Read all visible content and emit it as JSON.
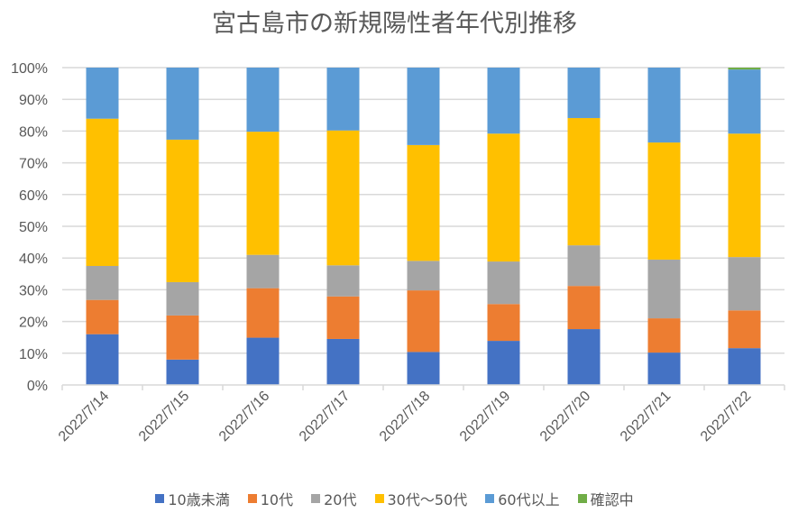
{
  "chart_data": {
    "type": "bar",
    "stacked": "percent",
    "title": "宮古島市の新規陽性者年代別推移",
    "xlabel": "",
    "ylabel": "",
    "ylim": [
      0,
      100
    ],
    "yticks": [
      "0%",
      "10%",
      "20%",
      "30%",
      "40%",
      "50%",
      "60%",
      "70%",
      "80%",
      "90%",
      "100%"
    ],
    "grid": true,
    "legend_position": "bottom",
    "categories": [
      "2022/7/14",
      "2022/7/15",
      "2022/7/16",
      "2022/7/17",
      "2022/7/18",
      "2022/7/19",
      "2022/7/20",
      "2022/7/21",
      "2022/7/22"
    ],
    "series": [
      {
        "name": "10歳未満",
        "color": "#4472C4",
        "values": [
          16.0,
          8.0,
          14.9,
          14.5,
          10.4,
          13.9,
          17.6,
          10.2,
          11.6
        ]
      },
      {
        "name": "10代",
        "color": "#ED7D31",
        "values": [
          10.8,
          13.9,
          15.6,
          13.4,
          19.4,
          11.6,
          13.6,
          10.8,
          11.9
        ]
      },
      {
        "name": "20代",
        "color": "#A5A5A5",
        "values": [
          10.7,
          10.5,
          10.5,
          9.8,
          9.3,
          13.4,
          12.8,
          18.5,
          16.8
        ]
      },
      {
        "name": "30代～50代",
        "color": "#FFC000",
        "values": [
          46.4,
          44.9,
          38.8,
          42.5,
          36.5,
          40.3,
          40.1,
          36.9,
          38.9
        ]
      },
      {
        "name": "60代以上",
        "color": "#5B9BD5",
        "values": [
          16.1,
          22.7,
          20.2,
          19.8,
          24.4,
          20.8,
          15.9,
          23.6,
          20.2
        ]
      },
      {
        "name": "確認中",
        "color": "#70AD47",
        "values": [
          0,
          0,
          0,
          0,
          0,
          0,
          0,
          0,
          0.6
        ]
      }
    ]
  }
}
